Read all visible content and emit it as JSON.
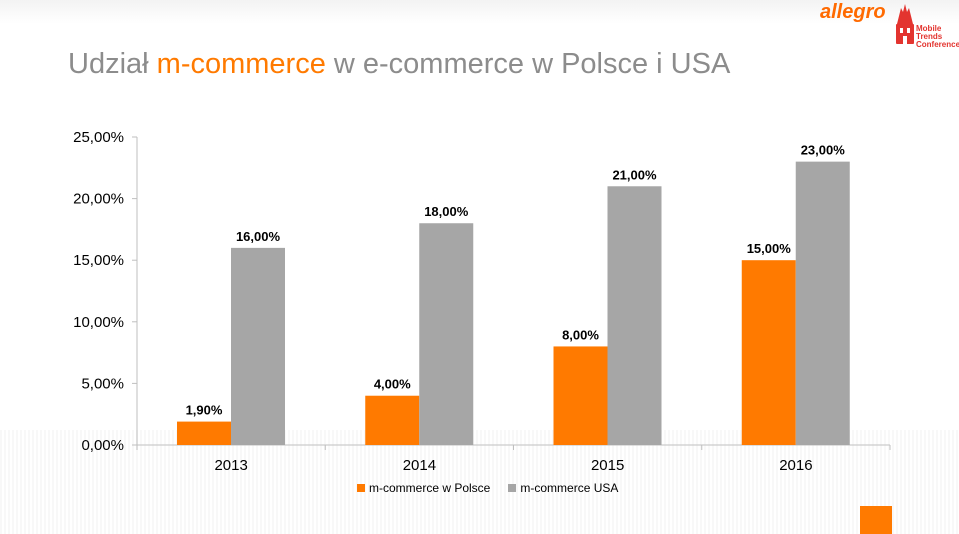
{
  "page": {
    "title_part1": "Udział ",
    "title_accent": "m-commerce",
    "title_part2": " w e-commerce w Polsce i USA",
    "brand": "allegro",
    "conference_logo_lines": [
      "Mobile",
      "Trends",
      "Conference"
    ]
  },
  "colors": {
    "accent": "#ff7a00",
    "title_gray": "#8c8c8c",
    "series_polska": "#ff7a00",
    "series_usa": "#a6a6a6",
    "conference_red": "#e3342f"
  },
  "chart_data": {
    "type": "bar",
    "title": "",
    "xlabel": "",
    "ylabel": "",
    "categories": [
      "2013",
      "2014",
      "2015",
      "2016"
    ],
    "series": [
      {
        "name": "m-commerce w Polsce",
        "values": [
          1.9,
          4.0,
          8.0,
          15.0
        ],
        "labels": [
          "1,90%",
          "4,00%",
          "8,00%",
          "15,00%"
        ],
        "color": "#ff7a00"
      },
      {
        "name": "m-commerce USA",
        "values": [
          16.0,
          18.0,
          21.0,
          23.0
        ],
        "labels": [
          "16,00%",
          "18,00%",
          "21,00%",
          "23,00%"
        ],
        "color": "#a6a6a6"
      }
    ],
    "ylim": [
      0,
      25
    ],
    "yticks": [
      0,
      5,
      10,
      15,
      20,
      25
    ],
    "ytick_labels": [
      "0,00%",
      "5,00%",
      "10,00%",
      "15,00%",
      "20,00%",
      "25,00%"
    ],
    "grid": false,
    "legend_position": "bottom"
  }
}
